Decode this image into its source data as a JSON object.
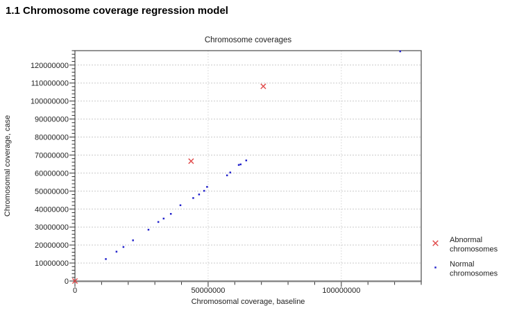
{
  "page": {
    "heading": "1.1 Chromosome coverage regression model"
  },
  "chart_data": {
    "type": "scatter",
    "title": "Chromosome coverages",
    "xlabel": "Chromosomal coverage, baseline",
    "ylabel": "Chromosomal coverage, case",
    "xlim": [
      0,
      130000000
    ],
    "ylim": [
      0,
      128000000
    ],
    "grid": {
      "horizontal_step": 10000000,
      "vertical_at": [
        50000000,
        100000000
      ],
      "color": "#c9c9c9",
      "style": "dashed"
    },
    "x_ticks": {
      "minor_step": 10000000,
      "major_step": 50000000
    },
    "y_ticks": {
      "minor_step": 2000000,
      "major_step": 10000000
    },
    "x_tick_labels": [
      {
        "value": 0,
        "label": "0"
      },
      {
        "value": 50000000,
        "label": "50000000"
      },
      {
        "value": 100000000,
        "label": "100000000"
      }
    ],
    "y_tick_labels": [
      {
        "value": 0,
        "label": "0"
      },
      {
        "value": 10000000,
        "label": "10000000"
      },
      {
        "value": 20000000,
        "label": "20000000"
      },
      {
        "value": 30000000,
        "label": "30000000"
      },
      {
        "value": 40000000,
        "label": "40000000"
      },
      {
        "value": 50000000,
        "label": "50000000"
      },
      {
        "value": 60000000,
        "label": "60000000"
      },
      {
        "value": 70000000,
        "label": "70000000"
      },
      {
        "value": 80000000,
        "label": "80000000"
      },
      {
        "value": 90000000,
        "label": "90000000"
      },
      {
        "value": 100000000,
        "label": "100000000"
      },
      {
        "value": 110000000,
        "label": "110000000"
      },
      {
        "value": 120000000,
        "label": "120000000"
      }
    ],
    "series": [
      {
        "name": "Abnormal chromosomes",
        "marker": "x",
        "color": "#e04747",
        "points": [
          [
            0,
            0
          ],
          [
            43600000,
            66600000
          ],
          [
            70700000,
            108200000
          ]
        ]
      },
      {
        "name": "Normal chromosomes",
        "marker": "dot",
        "color": "#2222cc",
        "points": [
          [
            11600000,
            12200000
          ],
          [
            15600000,
            16300000
          ],
          [
            18200000,
            18900000
          ],
          [
            21800000,
            22600000
          ],
          [
            27600000,
            28500000
          ],
          [
            31300000,
            32800000
          ],
          [
            33300000,
            34700000
          ],
          [
            36000000,
            37300000
          ],
          [
            39600000,
            42100000
          ],
          [
            44400000,
            46100000
          ],
          [
            46600000,
            48100000
          ],
          [
            48500000,
            50100000
          ],
          [
            49600000,
            52300000
          ],
          [
            57100000,
            58700000
          ],
          [
            58300000,
            60300000
          ],
          [
            61500000,
            64500000
          ],
          [
            62200000,
            64800000
          ],
          [
            64300000,
            67000000
          ],
          [
            122100000,
            127600000
          ]
        ]
      }
    ],
    "legend": {
      "position": "right",
      "entries": [
        {
          "marker": "x",
          "color": "#e04747",
          "label_lines": [
            "Abnormal",
            "chromosomes"
          ]
        },
        {
          "marker": "dot",
          "color": "#2222cc",
          "label_lines": [
            "Normal",
            "chromosomes"
          ]
        }
      ]
    }
  }
}
